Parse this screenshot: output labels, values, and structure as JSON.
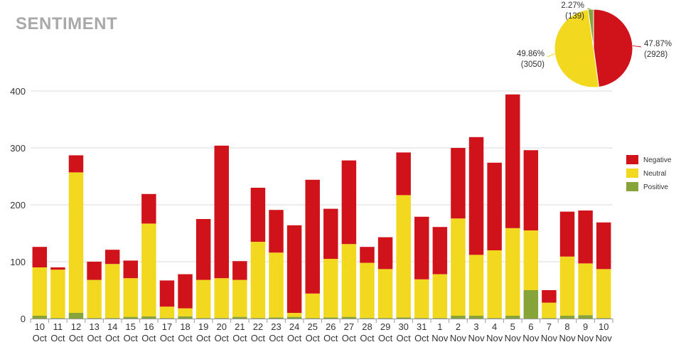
{
  "title": "SENTIMENT",
  "colors": {
    "negative": "#d0121b",
    "neutral": "#f2d81f",
    "positive": "#86a43a"
  },
  "chart_data": [
    {
      "type": "bar",
      "stacked": true,
      "ylim": [
        0,
        400
      ],
      "yticks": [
        0,
        100,
        200,
        300,
        400
      ],
      "grid": true,
      "legend_position": "right",
      "categories": [
        [
          "10",
          "Oct"
        ],
        [
          "11",
          "Oct"
        ],
        [
          "12",
          "Oct"
        ],
        [
          "13",
          "Oct"
        ],
        [
          "14",
          "Oct"
        ],
        [
          "15",
          "Oct"
        ],
        [
          "16",
          "Oct"
        ],
        [
          "17",
          "Oct"
        ],
        [
          "18",
          "Oct"
        ],
        [
          "19",
          "Oct"
        ],
        [
          "20",
          "Oct"
        ],
        [
          "21",
          "Oct"
        ],
        [
          "22",
          "Oct"
        ],
        [
          "23",
          "Oct"
        ],
        [
          "24",
          "Oct"
        ],
        [
          "25",
          "Oct"
        ],
        [
          "26",
          "Oct"
        ],
        [
          "27",
          "Oct"
        ],
        [
          "28",
          "Oct"
        ],
        [
          "29",
          "Oct"
        ],
        [
          "30",
          "Oct"
        ],
        [
          "31",
          "Oct"
        ],
        [
          "1",
          "Nov"
        ],
        [
          "2",
          "Nov"
        ],
        [
          "3",
          "Nov"
        ],
        [
          "4",
          "Nov"
        ],
        [
          "5",
          "Nov"
        ],
        [
          "6",
          "Nov"
        ],
        [
          "7",
          "Nov"
        ],
        [
          "8",
          "Nov"
        ],
        [
          "9",
          "Nov"
        ],
        [
          "10",
          "Nov"
        ]
      ],
      "series": [
        {
          "name": "Positive",
          "color": "#86a43a",
          "values": [
            5,
            1,
            10,
            1,
            1,
            3,
            4,
            1,
            4,
            1,
            1,
            3,
            1,
            2,
            3,
            1,
            2,
            3,
            1,
            1,
            2,
            1,
            1,
            5,
            5,
            1,
            5,
            50,
            1,
            5,
            6,
            1
          ]
        },
        {
          "name": "Neutral",
          "color": "#f2d81f",
          "values": [
            85,
            85,
            247,
            67,
            95,
            68,
            163,
            20,
            14,
            67,
            70,
            65,
            134,
            114,
            7,
            43,
            103,
            128,
            97,
            86,
            215,
            68,
            77,
            171,
            107,
            119,
            154,
            105,
            27,
            104,
            91,
            86
          ]
        },
        {
          "name": "Negative",
          "color": "#d0121b",
          "values": [
            36,
            4,
            30,
            32,
            25,
            31,
            52,
            46,
            60,
            107,
            233,
            33,
            95,
            75,
            154,
            200,
            88,
            147,
            28,
            56,
            75,
            110,
            83,
            124,
            207,
            154,
            235,
            141,
            22,
            79,
            93,
            82
          ]
        }
      ]
    },
    {
      "type": "pie",
      "slices": [
        {
          "name": "Negative",
          "value": 2928,
          "percent": "47.87%",
          "count": "(2928)",
          "color": "#d0121b"
        },
        {
          "name": "Neutral",
          "value": 3050,
          "percent": "49.86%",
          "count": "(3050)",
          "color": "#f2d81f"
        },
        {
          "name": "Positive",
          "value": 139,
          "percent": "2.27%",
          "count": "(139)",
          "color": "#86a43a"
        }
      ]
    }
  ]
}
